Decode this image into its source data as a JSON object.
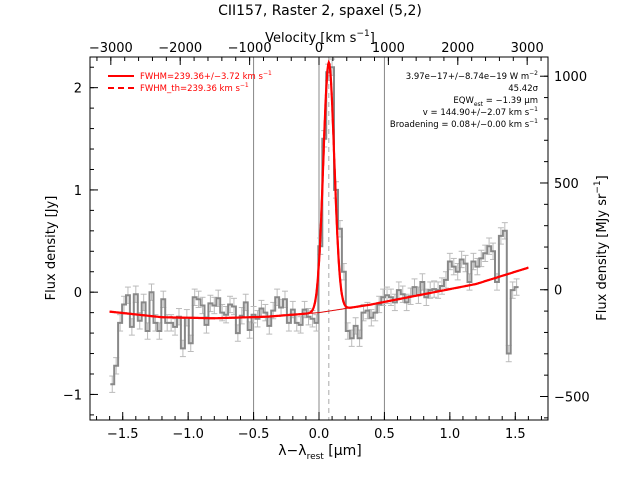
{
  "chart_data": {
    "type": "line",
    "title": "CII157, Raster 2, spaxel (5,2)",
    "xlabel_main": "λ−λ",
    "xlabel_sub": "rest",
    "xlabel_unit": " [μm]",
    "top_xlabel_main": "Velocity [km s",
    "top_xlabel_sup": "−1",
    "top_xlabel_end": "]",
    "ylabel": "Flux density [Jy]",
    "right_ylabel_main": "Flux density [MJy sr",
    "right_ylabel_sup": "−1",
    "right_ylabel_end": "]",
    "xlim": [
      -1.75,
      1.75
    ],
    "ylim": [
      -1.25,
      2.3
    ],
    "top_xlim": [
      -3300,
      3300
    ],
    "right_ylim": [
      -610,
      1090
    ],
    "x_ticks": [
      -1.5,
      -1.0,
      -0.5,
      0.0,
      0.5,
      1.0,
      1.5
    ],
    "x_ticklabels": [
      "−1.5",
      "−1.0",
      "−0.5",
      "0.0",
      "0.5",
      "1.0",
      "1.5"
    ],
    "y_ticks": [
      -1,
      0,
      1,
      2
    ],
    "y_ticklabels": [
      "−1",
      "0",
      "1",
      "2"
    ],
    "top_ticks": [
      -3000,
      -2000,
      -1000,
      0,
      1000,
      2000,
      3000
    ],
    "top_ticklabels": [
      "−3000",
      "−2000",
      "−1000",
      "0",
      "1000",
      "2000",
      "3000"
    ],
    "right_ticks": [
      -500,
      0,
      500,
      1000
    ],
    "right_ticklabels": [
      "−500",
      "0",
      "500",
      "1000"
    ],
    "vlines_x": [
      -0.5,
      0.0,
      0.5
    ],
    "center_line_x": 0.075,
    "legend": [
      {
        "label_main": "FWHM=239.36+/−3.72 km s",
        "label_sup": "−1",
        "style": "solid"
      },
      {
        "label_main": "FWHM_th=239.36 km s",
        "label_sup": "−1",
        "style": "dashed"
      }
    ],
    "annotations": {
      "flux_main": "3.97e−17+/−8.74e−19 W m",
      "flux_sup": "−2",
      "sigma": "45.42σ",
      "eqw_main": "EQW",
      "eqw_sub": "est",
      "eqw_end": " = −1.39 μm",
      "velocity_main": "v = 144.90+/−2.07 km s",
      "velocity_sup": "−1",
      "broadening_main": "Broadening = 0.08+/−0.00 km s",
      "broadening_sup": "−1"
    },
    "spectrum": {
      "name": "data",
      "x": [
        -1.58,
        -1.55,
        -1.52,
        -1.49,
        -1.46,
        -1.43,
        -1.4,
        -1.37,
        -1.34,
        -1.31,
        -1.28,
        -1.25,
        -1.22,
        -1.19,
        -1.16,
        -1.13,
        -1.1,
        -1.07,
        -1.04,
        -1.01,
        -0.98,
        -0.95,
        -0.92,
        -0.89,
        -0.86,
        -0.83,
        -0.8,
        -0.77,
        -0.74,
        -0.71,
        -0.68,
        -0.65,
        -0.62,
        -0.59,
        -0.56,
        -0.53,
        -0.5,
        -0.47,
        -0.44,
        -0.41,
        -0.38,
        -0.35,
        -0.32,
        -0.29,
        -0.26,
        -0.23,
        -0.2,
        -0.17,
        -0.14,
        -0.11,
        -0.08,
        -0.05,
        -0.02,
        0.01,
        0.04,
        0.07,
        0.1,
        0.13,
        0.16,
        0.19,
        0.22,
        0.25,
        0.28,
        0.31,
        0.34,
        0.37,
        0.4,
        0.43,
        0.46,
        0.49,
        0.52,
        0.55,
        0.58,
        0.61,
        0.64,
        0.67,
        0.7,
        0.73,
        0.76,
        0.79,
        0.82,
        0.85,
        0.88,
        0.91,
        0.94,
        0.97,
        1.0,
        1.03,
        1.06,
        1.09,
        1.12,
        1.15,
        1.18,
        1.21,
        1.24,
        1.27,
        1.3,
        1.33,
        1.36,
        1.39,
        1.42,
        1.45,
        1.48,
        1.51
      ],
      "y": [
        -0.9,
        -0.72,
        -0.3,
        -0.12,
        -0.03,
        -0.34,
        -0.02,
        -0.28,
        -0.1,
        -0.38,
        0.0,
        -0.3,
        -0.38,
        -0.07,
        -0.3,
        -0.3,
        -0.34,
        -0.24,
        -0.55,
        -0.25,
        -0.5,
        -0.05,
        -0.07,
        -0.13,
        -0.32,
        -0.11,
        -0.13,
        -0.06,
        -0.2,
        -0.22,
        -0.12,
        -0.14,
        -0.4,
        -0.23,
        -0.1,
        -0.37,
        -0.22,
        -0.26,
        -0.16,
        -0.2,
        -0.33,
        -0.18,
        -0.05,
        -0.15,
        -0.07,
        -0.3,
        -0.17,
        -0.3,
        -0.32,
        -0.17,
        -0.24,
        -0.26,
        -0.3,
        0.45,
        1.5,
        2.15,
        2.2,
        1.0,
        0.62,
        0.2,
        -0.38,
        -0.45,
        -0.33,
        -0.45,
        -0.2,
        -0.18,
        -0.25,
        -0.2,
        -0.12,
        -0.05,
        -0.03,
        -0.05,
        -0.1,
        0.02,
        -0.02,
        -0.1,
        -0.04,
        0.05,
        -0.03,
        0.1,
        -0.05,
        0.02,
        0.03,
        0.02,
        0.06,
        0.12,
        0.3,
        0.25,
        0.2,
        0.32,
        0.28,
        0.1,
        0.3,
        0.25,
        0.33,
        0.38,
        0.45,
        0.4,
        0.1,
        0.55,
        0.6,
        -0.6,
        0.02,
        0.05
      ],
      "err": 0.08
    },
    "model": {
      "name": "fit",
      "continuum_x": [
        -1.6,
        -1.2,
        -0.8,
        -0.4,
        0.0,
        0.4,
        0.8,
        1.2,
        1.6
      ],
      "continuum_y": [
        -0.19,
        -0.245,
        -0.255,
        -0.24,
        -0.2,
        -0.12,
        -0.02,
        0.08,
        0.24
      ],
      "gaussian_center": 0.075,
      "gaussian_amplitude": 2.43,
      "gaussian_sigma": 0.042
    }
  }
}
